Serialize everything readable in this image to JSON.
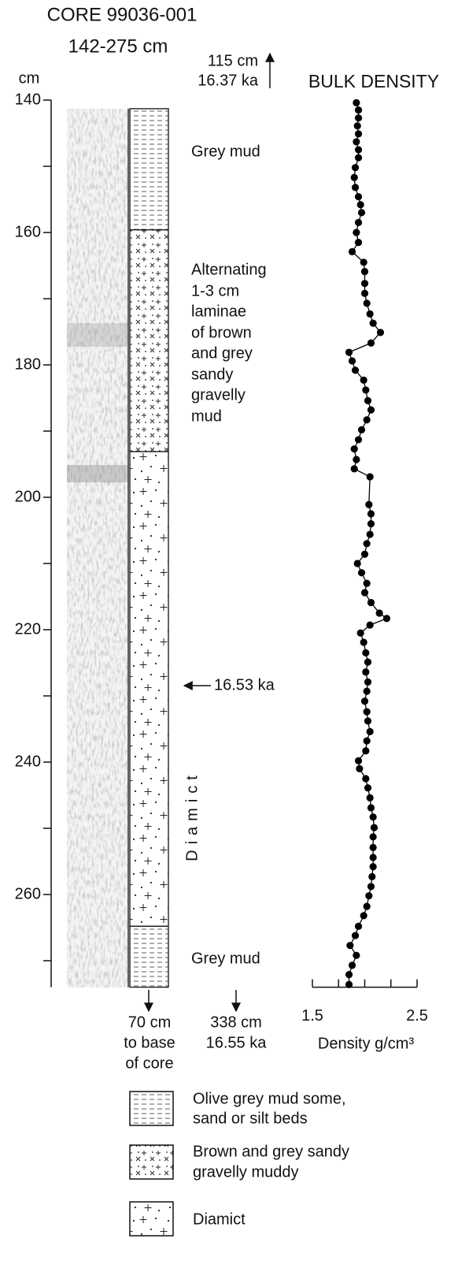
{
  "header": {
    "title": "CORE 99036-001",
    "subtitle": "142-275 cm",
    "depth_unit": "cm"
  },
  "top_marker": {
    "depth": "115 cm",
    "age": "16.37 ka"
  },
  "age_marker": {
    "label": "16.53 ka",
    "depth": 228.5
  },
  "lithology": {
    "units": [
      {
        "pattern": "mud",
        "top": 141.3,
        "bottom": 159.6,
        "label": [
          "Grey mud"
        ]
      },
      {
        "pattern": "sandy",
        "top": 159.6,
        "bottom": 193.1,
        "label": [
          "Alternating",
          "1-3 cm",
          "laminae",
          "of brown",
          "and grey",
          "sandy",
          "gravelly",
          "mud"
        ]
      },
      {
        "pattern": "diamict",
        "top": 193.1,
        "bottom": 264.8,
        "label": [
          "Diamict"
        ]
      },
      {
        "pattern": "mud",
        "top": 264.8,
        "bottom": 274,
        "label": [
          "Grey mud"
        ]
      }
    ]
  },
  "bottom_notes": {
    "core_base": [
      "70 cm",
      "to base",
      "of core"
    ],
    "bottom_marker": [
      "338 cm",
      "16.55 ka"
    ]
  },
  "legend": [
    {
      "pattern": "mud",
      "lines": [
        "Olive grey mud some,",
        "sand or silt beds"
      ]
    },
    {
      "pattern": "sandy",
      "lines": [
        "Brown and grey sandy",
        "gravelly muddy"
      ]
    },
    {
      "pattern": "diamict",
      "lines": [
        "Diamict"
      ]
    }
  ],
  "chart_data": {
    "type": "line",
    "title": "BULK DENSITY",
    "xlabel": "Density g/cm³",
    "color": "#000000",
    "markers": true,
    "xlim": [
      1.5,
      2.5
    ],
    "xticks": [
      1.5,
      2.5
    ],
    "xminor_ticks": [
      1.75,
      2.0,
      2.25
    ],
    "ylim": [
      140,
      274
    ],
    "y_inverted": true,
    "yticks": [
      140,
      160,
      180,
      200,
      220,
      240,
      260
    ],
    "yminor_ticks": [
      150,
      170,
      190,
      210,
      230,
      250,
      270
    ],
    "y": [
      140.4,
      141.5,
      142.7,
      143.9,
      145.1,
      146.3,
      147.5,
      148.7,
      150.2,
      151.7,
      153.2,
      154.6,
      155.8,
      157.0,
      158.5,
      160.0,
      161.5,
      162.9,
      164.5,
      165.9,
      167.7,
      169.2,
      170.7,
      172.3,
      173.7,
      175.1,
      176.7,
      178.1,
      179.4,
      180.8,
      182.3,
      183.8,
      185.4,
      186.8,
      188.3,
      189.8,
      191.3,
      192.7,
      194.3,
      195.7,
      196.9,
      201.1,
      202.5,
      204.0,
      205.6,
      207.0,
      208.6,
      210.0,
      211.4,
      213.0,
      214.4,
      215.9,
      217.5,
      218.3,
      219.3,
      220.5,
      221.9,
      223.5,
      224.9,
      226.4,
      227.9,
      229.3,
      230.8,
      232.4,
      233.8,
      235.4,
      236.8,
      238.3,
      239.8,
      241.0,
      242.5,
      243.9,
      245.4,
      246.9,
      248.3,
      249.9,
      251.3,
      252.9,
      254.4,
      255.8,
      257.3,
      258.8,
      260.2,
      261.8,
      263.2,
      264.8,
      266.2,
      267.7,
      269.2,
      270.7,
      272.1,
      273.6
    ],
    "values": [
      1.92,
      1.94,
      1.94,
      1.93,
      1.94,
      1.92,
      1.94,
      1.94,
      1.91,
      1.9,
      1.91,
      1.94,
      1.96,
      1.97,
      1.94,
      1.92,
      1.94,
      1.88,
      1.99,
      2.0,
      2.0,
      2.0,
      2.02,
      2.05,
      2.08,
      2.15,
      2.06,
      1.85,
      1.88,
      1.91,
      1.99,
      2.01,
      2.03,
      2.06,
      2.02,
      1.97,
      1.94,
      1.9,
      1.92,
      1.9,
      2.05,
      2.04,
      2.06,
      2.06,
      2.05,
      2.02,
      2.0,
      1.93,
      1.97,
      2.02,
      2.0,
      2.06,
      2.14,
      2.21,
      2.05,
      1.96,
      1.99,
      2.01,
      2.03,
      2.01,
      2.03,
      2.02,
      2.0,
      2.02,
      2.03,
      2.05,
      2.02,
      2.01,
      1.94,
      1.95,
      2.01,
      2.03,
      2.05,
      2.06,
      2.08,
      2.09,
      2.08,
      2.08,
      2.08,
      2.08,
      2.07,
      2.06,
      2.04,
      2.02,
      1.99,
      1.94,
      1.91,
      1.86,
      1.92,
      1.88,
      1.85,
      1.85
    ]
  }
}
